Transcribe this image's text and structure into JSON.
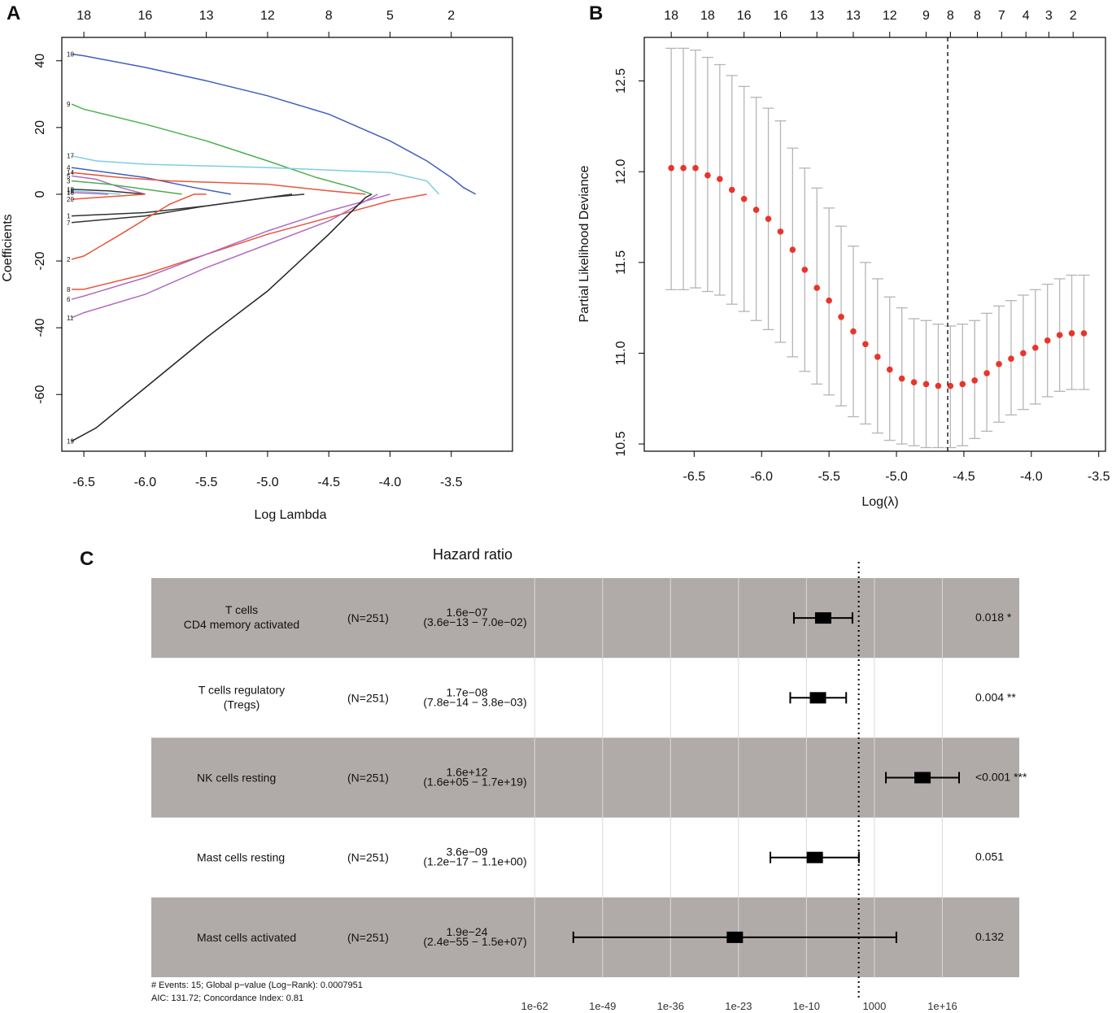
{
  "chart_data": [
    {
      "panel": "A",
      "type": "line",
      "title": "",
      "xlabel": "Log Lambda",
      "ylabel": "Coefficients",
      "xlim": [
        -6.68,
        -3.0
      ],
      "ylim": [
        -77,
        47
      ],
      "x_ticks": [
        "-6.5",
        "-6.0",
        "-5.5",
        "-5.0",
        "-4.5",
        "-4.0",
        "-3.5"
      ],
      "x_tick_values": [
        -6.5,
        -6.0,
        -5.5,
        -5.0,
        -4.5,
        -4.0,
        -3.5
      ],
      "y_ticks": [
        "-60",
        "-40",
        "-20",
        "0",
        "20",
        "40"
      ],
      "y_tick_values": [
        -60,
        -40,
        -20,
        0,
        20,
        40
      ],
      "top_ticks": [
        "18",
        "16",
        "13",
        "12",
        "8",
        "5",
        "2"
      ],
      "top_tick_values": [
        -6.5,
        -6.0,
        -5.5,
        -5.0,
        -4.5,
        -4.0,
        -3.5
      ],
      "series": [
        {
          "name": "10",
          "color": "#3f5fbf",
          "x": [
            -6.6,
            -6.5,
            -6.0,
            -5.5,
            -5.0,
            -4.5,
            -4.0,
            -3.7,
            -3.5,
            -3.4,
            -3.3
          ],
          "values": [
            42,
            41.5,
            38,
            34,
            29.5,
            24,
            16,
            10,
            5,
            2,
            0
          ]
        },
        {
          "name": "9",
          "color": "#4caf50",
          "x": [
            -6.6,
            -6.5,
            -6.0,
            -5.5,
            -5.0,
            -4.6,
            -4.3,
            -4.15
          ],
          "values": [
            27,
            25.5,
            21,
            16,
            10,
            5,
            2,
            0
          ]
        },
        {
          "name": "17",
          "color": "#7ecde0",
          "x": [
            -6.6,
            -6.4,
            -6.0,
            -5.0,
            -4.0,
            -3.7,
            -3.6
          ],
          "values": [
            11.5,
            10,
            9,
            8,
            6.5,
            4,
            0
          ]
        },
        {
          "name": "4",
          "color": "#3f5fbf",
          "x": [
            -6.6,
            -6.4,
            -6.0,
            -5.6,
            -5.3
          ],
          "values": [
            8,
            7,
            5,
            2,
            0
          ]
        },
        {
          "name": "14",
          "color": "#e8553b",
          "x": [
            -6.6,
            -6.2,
            -5.8,
            -5.0,
            -4.5,
            -4.2
          ],
          "values": [
            6.5,
            5,
            4,
            3,
            1,
            0
          ]
        },
        {
          "name": "5",
          "color": "#b06cc0",
          "x": [
            -6.6,
            -6.4,
            -6.2,
            -6.0
          ],
          "values": [
            5.5,
            4.5,
            2,
            0
          ]
        },
        {
          "name": "3",
          "color": "#4caf50",
          "x": [
            -6.6,
            -6.3,
            -6.0,
            -5.7
          ],
          "values": [
            4,
            3,
            1.5,
            0
          ]
        },
        {
          "name": "18",
          "color": "#333333",
          "x": [
            -6.6,
            -6.3,
            -6.0
          ],
          "values": [
            1.5,
            1,
            0
          ]
        },
        {
          "name": "15",
          "color": "#7ecde0",
          "x": [
            -6.6,
            -6.4,
            -6.2
          ],
          "values": [
            1,
            0.5,
            0
          ]
        },
        {
          "name": "16",
          "color": "#b06cc0",
          "x": [
            -6.6,
            -6.4,
            -6.3
          ],
          "values": [
            0.5,
            0.2,
            0
          ]
        },
        {
          "name": "20",
          "color": "#e8553b",
          "x": [
            -6.6,
            -6.4,
            -6.2,
            -6.0
          ],
          "values": [
            -1.5,
            -1,
            -0.5,
            0
          ]
        },
        {
          "name": "1",
          "color": "#333333",
          "x": [
            -6.6,
            -6.0,
            -5.5,
            -5.0,
            -4.8
          ],
          "values": [
            -6.5,
            -5.5,
            -3.5,
            -1,
            0
          ]
        },
        {
          "name": "7",
          "color": "#333333",
          "x": [
            -6.6,
            -6.0,
            -5.5,
            -5.0,
            -4.7
          ],
          "values": [
            -8.5,
            -6.5,
            -3.5,
            -1,
            0
          ]
        },
        {
          "name": "2",
          "color": "#e8553b",
          "x": [
            -6.6,
            -6.5,
            -6.2,
            -5.8,
            -5.6,
            -5.5
          ],
          "values": [
            -19.5,
            -18.5,
            -12,
            -3,
            0,
            0
          ]
        },
        {
          "name": "8",
          "color": "#e8553b",
          "x": [
            -6.6,
            -6.5,
            -6.0,
            -5.5,
            -5.0,
            -4.5,
            -4.0,
            -3.7
          ],
          "values": [
            -28.5,
            -28.5,
            -24,
            -18,
            -12,
            -7,
            -2,
            0
          ]
        },
        {
          "name": "6",
          "color": "#b06cc0",
          "x": [
            -6.6,
            -6.5,
            -6.0,
            -5.5,
            -5.0,
            -4.5,
            -4.0
          ],
          "values": [
            -31.5,
            -30.5,
            -25,
            -18,
            -11,
            -5,
            0
          ]
        },
        {
          "name": "11",
          "color": "#b06cc0",
          "x": [
            -6.6,
            -6.5,
            -6.0,
            -5.5,
            -5.0,
            -4.5,
            -4.1
          ],
          "values": [
            -37,
            -35.5,
            -30,
            -22,
            -15,
            -8,
            0
          ]
        },
        {
          "name": "19",
          "color": "#222222",
          "x": [
            -6.6,
            -6.4,
            -6.0,
            -5.5,
            -5.0,
            -4.5,
            -4.2,
            -4.15
          ],
          "values": [
            -74,
            -70,
            -58,
            -43,
            -29,
            -12,
            -1,
            0
          ]
        }
      ]
    },
    {
      "panel": "B",
      "type": "scatter",
      "title": "",
      "xlabel": "Log(λ)",
      "ylabel": "Partial Likelihood Deviance",
      "xlim": [
        -6.87,
        -3.45
      ],
      "ylim": [
        10.46,
        12.74
      ],
      "x_ticks": [
        "-6.5",
        "-6.0",
        "-5.5",
        "-5.0",
        "-4.5",
        "-4.0",
        "-3.5"
      ],
      "x_tick_values": [
        -6.5,
        -6.0,
        -5.5,
        -5.0,
        -4.5,
        -4.0,
        -3.5
      ],
      "y_ticks": [
        "10.5",
        "11.0",
        "11.5",
        "12.0",
        "12.5"
      ],
      "y_tick_values": [
        10.5,
        11.0,
        11.5,
        12.0,
        12.5
      ],
      "top_ticks": [
        "18",
        "18",
        "16",
        "16",
        "13",
        "13",
        "12",
        "9",
        "8",
        "8",
        "7",
        "4",
        "3",
        "2"
      ],
      "top_tick_values": [
        -6.67,
        -6.4,
        -6.13,
        -5.86,
        -5.59,
        -5.32,
        -5.05,
        -4.78,
        -4.6,
        -4.4,
        -4.22,
        -4.04,
        -3.87,
        -3.69
      ],
      "vline": -4.62,
      "x": [
        -6.67,
        -6.58,
        -6.49,
        -6.4,
        -6.31,
        -6.22,
        -6.13,
        -6.04,
        -5.95,
        -5.86,
        -5.77,
        -5.68,
        -5.59,
        -5.5,
        -5.41,
        -5.32,
        -5.23,
        -5.14,
        -5.05,
        -4.96,
        -4.87,
        -4.78,
        -4.69,
        -4.6,
        -4.51,
        -4.42,
        -4.33,
        -4.24,
        -4.15,
        -4.06,
        -3.97,
        -3.88,
        -3.79,
        -3.7,
        -3.61
      ],
      "values": [
        12.02,
        12.02,
        12.02,
        11.98,
        11.96,
        11.9,
        11.85,
        11.79,
        11.74,
        11.67,
        11.57,
        11.46,
        11.36,
        11.29,
        11.2,
        11.12,
        11.05,
        10.98,
        10.91,
        10.86,
        10.84,
        10.83,
        10.82,
        10.82,
        10.83,
        10.85,
        10.89,
        10.94,
        10.97,
        11.0,
        11.03,
        11.07,
        11.1,
        11.11,
        11.11
      ],
      "upper": [
        12.68,
        12.68,
        12.67,
        12.63,
        12.59,
        12.53,
        12.47,
        12.41,
        12.35,
        12.28,
        12.13,
        12.02,
        11.91,
        11.8,
        11.7,
        11.59,
        11.5,
        11.41,
        11.31,
        11.25,
        11.19,
        11.18,
        11.16,
        11.15,
        11.16,
        11.18,
        11.22,
        11.26,
        11.29,
        11.32,
        11.35,
        11.38,
        11.41,
        11.43,
        11.43
      ],
      "lower": [
        11.35,
        11.35,
        11.36,
        11.34,
        11.32,
        11.27,
        11.23,
        11.18,
        11.13,
        11.06,
        10.98,
        10.9,
        10.83,
        10.77,
        10.71,
        10.65,
        10.61,
        10.56,
        10.52,
        10.5,
        10.49,
        10.48,
        10.48,
        10.48,
        10.49,
        10.53,
        10.57,
        10.62,
        10.66,
        10.69,
        10.72,
        10.76,
        10.79,
        10.8,
        10.8
      ]
    },
    {
      "panel": "C",
      "type": "forest",
      "title": "Hazard ratio",
      "x_scale": "log10",
      "xlim_log10": [
        -72,
        22
      ],
      "reference_log10": 0,
      "x_ticks": [
        "1e-62",
        "1e-49",
        "1e-36",
        "1e-23",
        "1e-10",
        "1000",
        "1e+16"
      ],
      "x_tick_log10": [
        -62,
        -49,
        -36,
        -23,
        -10,
        3,
        16
      ],
      "rows": [
        {
          "label_line1": "T cells",
          "label_line2": "CD4 memory activated",
          "n": "(N=251)",
          "hr": "1.6e−07",
          "ci": "(3.6e−13 − 7.0e−02)",
          "p": "0.018 *",
          "hr_log10": -6.8,
          "lo_log10": -12.4,
          "hi_log10": -1.2,
          "shaded": true
        },
        {
          "label_line1": "T cells regulatory",
          "label_line2": "(Tregs)",
          "n": "(N=251)",
          "hr": "1.7e−08",
          "ci": "(7.8e−14 − 3.8e−03)",
          "p": "0.004 **",
          "hr_log10": -7.8,
          "lo_log10": -13.1,
          "hi_log10": -2.4,
          "shaded": false
        },
        {
          "label_line1": "NK cells resting",
          "label_line2": "",
          "n": "(N=251)",
          "hr": "1.6e+12",
          "ci": "(1.6e+05 − 1.7e+19)",
          "p": "<0.001 ***",
          "hr_log10": 12.2,
          "lo_log10": 5.2,
          "hi_log10": 19.2,
          "shaded": true
        },
        {
          "label_line1": "Mast cells resting",
          "label_line2": "",
          "n": "(N=251)",
          "hr": "3.6e−09",
          "ci": "(1.2e−17 − 1.1e+00)",
          "p": "0.051",
          "hr_log10": -8.4,
          "lo_log10": -16.9,
          "hi_log10": 0.04,
          "shaded": false
        },
        {
          "label_line1": "Mast cells activated",
          "label_line2": "",
          "n": "(N=251)",
          "hr": "1.9e−24",
          "ci": "(2.4e−55 − 1.5e+07)",
          "p": "0.132",
          "hr_log10": -23.7,
          "lo_log10": -54.6,
          "hi_log10": 7.2,
          "shaded": true
        }
      ],
      "footnote_line1": "# Events: 15; Global p−value (Log−Rank): 0.0007951",
      "footnote_line2": "AIC: 131.72; Concordance Index: 0.81"
    }
  ],
  "panel_labels": {
    "a": "A",
    "b": "B",
    "c": "C"
  },
  "colors": {
    "shade": "#b0aba9",
    "point_red": "#e8352b",
    "errorbar": "#b5b5b5",
    "forest_mark": "#000000"
  }
}
